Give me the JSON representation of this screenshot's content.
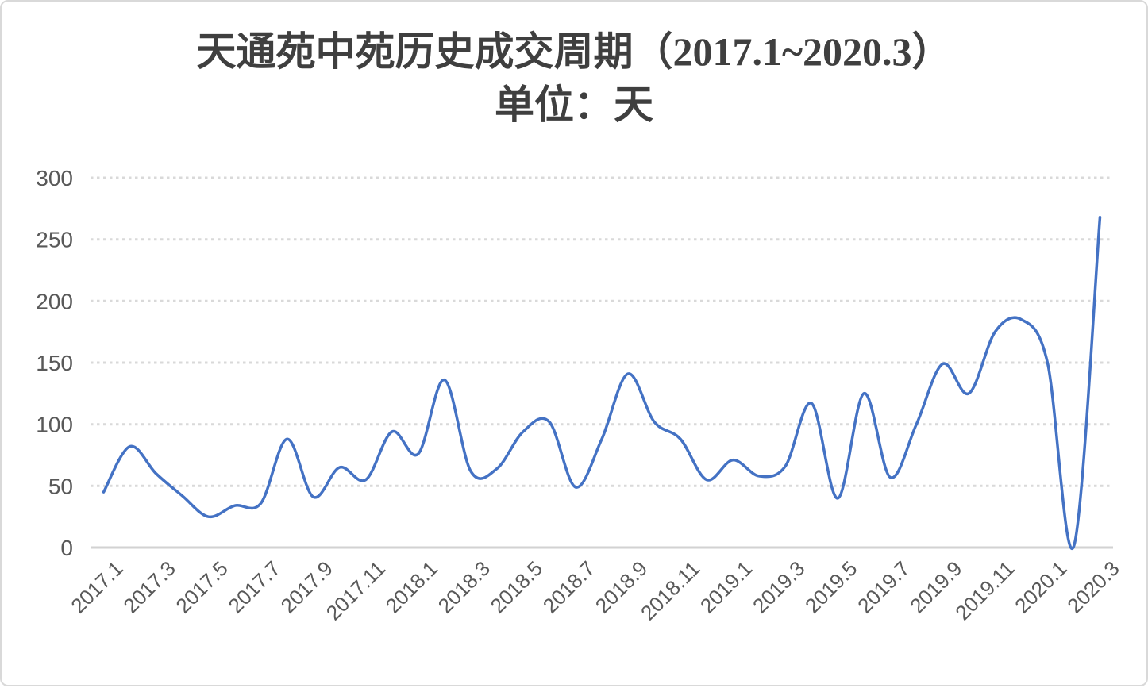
{
  "page": {
    "background": "#ffffff",
    "frame_border_color": "#d9d9d9"
  },
  "chart_data": {
    "type": "line",
    "title": "天通苑中苑历史成交周期（2017.1~2020.3）",
    "subtitle": "单位：天",
    "legend": "none",
    "grid": "horizontal dotted",
    "x_label_rotation": -45,
    "x_labels_shown_every": 2,
    "ylim": [
      0,
      300
    ],
    "yticks": [
      0,
      50,
      100,
      150,
      200,
      250,
      300
    ],
    "categories": [
      "2017.1",
      "2017.2",
      "2017.3",
      "2017.4",
      "2017.5",
      "2017.6",
      "2017.7",
      "2017.8",
      "2017.9",
      "2017.10",
      "2017.11",
      "2017.12",
      "2018.1",
      "2018.2",
      "2018.3",
      "2018.4",
      "2018.5",
      "2018.6",
      "2018.7",
      "2018.8",
      "2018.9",
      "2018.10",
      "2018.11",
      "2018.12",
      "2019.1",
      "2019.2",
      "2019.3",
      "2019.4",
      "2019.5",
      "2019.6",
      "2019.7",
      "2019.8",
      "2019.9",
      "2019.10",
      "2019.11",
      "2019.12",
      "2020.1",
      "2020.2",
      "2020.3"
    ],
    "values": [
      45,
      82,
      60,
      42,
      25,
      34,
      36,
      88,
      41,
      65,
      55,
      94,
      76,
      136,
      62,
      64,
      94,
      102,
      49,
      88,
      141,
      102,
      88,
      55,
      71,
      58,
      66,
      117,
      40,
      125,
      57,
      100,
      149,
      125,
      175,
      185,
      150,
      1,
      268
    ],
    "colors": {
      "line": "#4472C4",
      "gridline": "#D9D9D9",
      "axis_line": "#D2D2D2",
      "tick_text": "#595959",
      "title_text": "#3F3F3F"
    }
  }
}
